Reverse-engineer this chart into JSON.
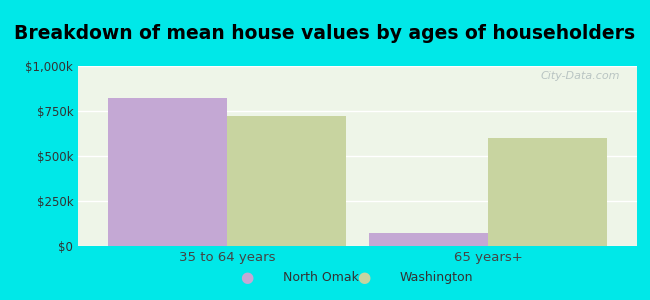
{
  "title": "Breakdown of mean house values by ages of householders",
  "categories": [
    "35 to 64 years",
    "65 years+"
  ],
  "series": [
    {
      "name": "North Omak",
      "values": [
        825000,
        75000
      ],
      "color": "#c4a8d4"
    },
    {
      "name": "Washington",
      "values": [
        725000,
        600000
      ],
      "color": "#c8d4a0"
    }
  ],
  "ylim": [
    0,
    1000000
  ],
  "yticks": [
    0,
    250000,
    500000,
    750000,
    1000000
  ],
  "ytick_labels": [
    "$0",
    "$250k",
    "$500k",
    "$750k",
    "$1,000k"
  ],
  "background_color": "#00e8e8",
  "plot_bg_color": "#eef5e8",
  "title_fontsize": 13.5,
  "bar_width": 0.32,
  "watermark": "City-Data.com"
}
